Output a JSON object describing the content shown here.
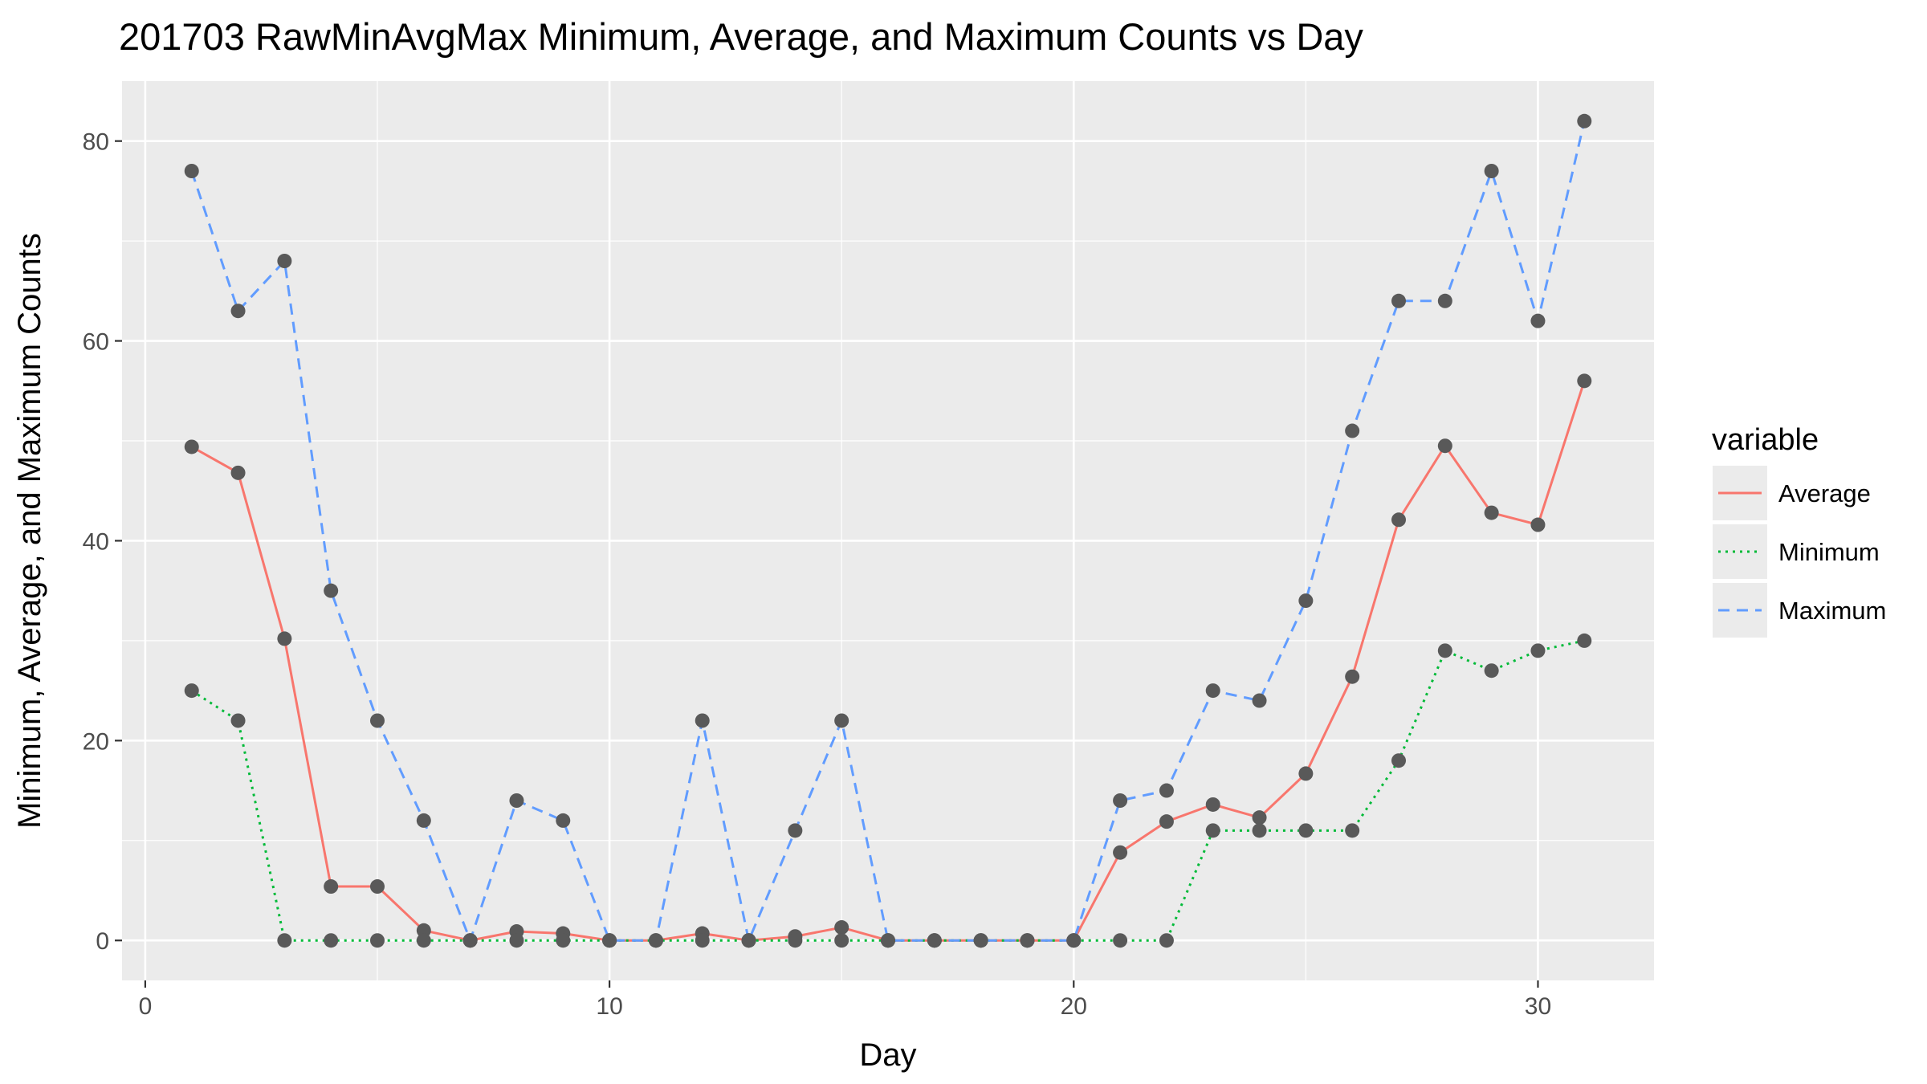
{
  "chart_data": {
    "type": "line",
    "title": "201703 RawMinAvgMax Minimum, Average, and Maximum Counts vs Day",
    "xlabel": "Day",
    "ylabel": "Minimum, Average, and Maximum Counts",
    "xlim": [
      -0.5,
      32.5
    ],
    "ylim": [
      -4,
      86
    ],
    "x_ticks": [
      0,
      10,
      20,
      30
    ],
    "y_ticks": [
      0,
      20,
      40,
      60,
      80
    ],
    "grid": true,
    "legend": {
      "title": "variable",
      "placement": "right"
    },
    "x": [
      1,
      2,
      3,
      4,
      5,
      6,
      7,
      8,
      9,
      10,
      11,
      12,
      13,
      14,
      15,
      16,
      17,
      18,
      19,
      20,
      21,
      22,
      23,
      24,
      25,
      26,
      27,
      28,
      29,
      30,
      31
    ],
    "series": [
      {
        "name": "Average",
        "color": "#F8766D",
        "dash": "solid",
        "values": [
          49.4,
          46.8,
          30.2,
          5.4,
          5.4,
          1.0,
          0.0,
          0.9,
          0.7,
          0.0,
          0.0,
          0.7,
          0.0,
          0.4,
          1.3,
          0.0,
          0.0,
          0.0,
          0.0,
          0.0,
          8.8,
          11.9,
          13.6,
          12.3,
          16.7,
          26.4,
          42.1,
          49.5,
          42.8,
          41.6,
          56.0
        ]
      },
      {
        "name": "Minimum",
        "color": "#00BA38",
        "dash": "dotted",
        "values": [
          25,
          22,
          0,
          0,
          0,
          0,
          0,
          0,
          0,
          0,
          0,
          0,
          0,
          0,
          0,
          0,
          0,
          0,
          0,
          0,
          0,
          0,
          11,
          11,
          11,
          11,
          18,
          29,
          27,
          29,
          30
        ]
      },
      {
        "name": "Maximum",
        "color": "#619CFF",
        "dash": "dashed",
        "values": [
          77,
          63,
          68,
          35,
          22,
          12,
          0,
          14,
          12,
          0,
          0,
          22,
          0,
          11,
          22,
          0,
          0,
          0,
          0,
          0,
          14,
          15,
          25,
          24,
          34,
          51,
          64,
          64,
          77,
          62,
          82
        ]
      }
    ],
    "colors": {
      "panel_background": "#EBEBEB",
      "grid": "#FFFFFF",
      "points": "#595959"
    }
  }
}
